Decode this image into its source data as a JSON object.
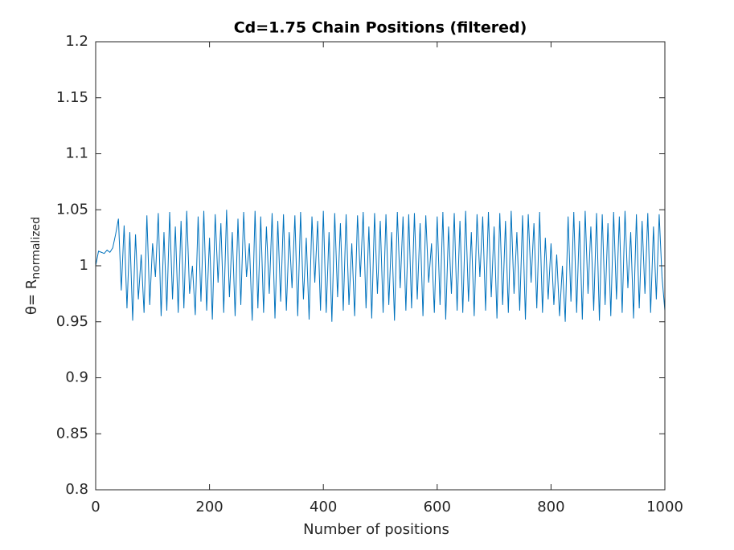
{
  "chart_data": {
    "type": "line",
    "title": "Cd=1.75   Chain  Positions (filtered)",
    "xlabel": "Number  of positions",
    "ylabel": "θ= R",
    "ylabel_subscript": "normalized",
    "xlim": [
      0,
      1000
    ],
    "xticks": [
      0,
      200,
      400,
      600,
      800,
      1000
    ],
    "ylim": [
      0.8,
      1.2
    ],
    "yticks": [
      0.8,
      0.85,
      0.9,
      0.95,
      1,
      1.05,
      1.1,
      1.15,
      1.2
    ],
    "grid": false,
    "x": [
      0,
      5,
      10,
      15,
      20,
      25,
      30,
      35,
      40,
      45,
      50,
      55,
      60,
      65,
      70,
      75,
      80,
      85,
      90,
      95,
      100,
      105,
      110,
      115,
      120,
      125,
      130,
      135,
      140,
      145,
      150,
      155,
      160,
      165,
      170,
      175,
      180,
      185,
      190,
      195,
      200,
      205,
      210,
      215,
      220,
      225,
      230,
      235,
      240,
      245,
      250,
      255,
      260,
      265,
      270,
      275,
      280,
      285,
      290,
      295,
      300,
      305,
      310,
      315,
      320,
      325,
      330,
      335,
      340,
      345,
      350,
      355,
      360,
      365,
      370,
      375,
      380,
      385,
      390,
      395,
      400,
      405,
      410,
      415,
      420,
      425,
      430,
      435,
      440,
      445,
      450,
      455,
      460,
      465,
      470,
      475,
      480,
      485,
      490,
      495,
      500,
      505,
      510,
      515,
      520,
      525,
      530,
      535,
      540,
      545,
      550,
      555,
      560,
      565,
      570,
      575,
      580,
      585,
      590,
      595,
      600,
      605,
      610,
      615,
      620,
      625,
      630,
      635,
      640,
      645,
      650,
      655,
      660,
      665,
      670,
      675,
      680,
      685,
      690,
      695,
      700,
      705,
      710,
      715,
      720,
      725,
      730,
      735,
      740,
      745,
      750,
      755,
      760,
      765,
      770,
      775,
      780,
      785,
      790,
      795,
      800,
      805,
      810,
      815,
      820,
      825,
      830,
      835,
      840,
      845,
      850,
      855,
      860,
      865,
      870,
      875,
      880,
      885,
      890,
      895,
      900,
      905,
      910,
      915,
      920,
      925,
      930,
      935,
      940,
      945,
      950,
      955,
      960,
      965,
      970,
      975,
      980,
      985,
      990,
      995,
      1000
    ],
    "series": [
      {
        "color": "#0072bd",
        "values": [
          1.0,
          1.013,
          1.012,
          1.011,
          1.014,
          1.012,
          1.016,
          1.028,
          1.042,
          0.978,
          1.036,
          0.962,
          1.03,
          0.951,
          1.028,
          0.97,
          1.01,
          0.958,
          1.045,
          0.965,
          1.02,
          0.99,
          1.047,
          0.955,
          1.03,
          0.96,
          1.048,
          0.97,
          1.035,
          0.958,
          1.04,
          0.962,
          1.049,
          0.975,
          1.0,
          0.956,
          1.044,
          0.968,
          1.049,
          0.96,
          1.025,
          0.952,
          1.046,
          0.985,
          1.038,
          0.958,
          1.05,
          0.972,
          1.03,
          0.955,
          1.042,
          0.965,
          1.048,
          0.99,
          1.02,
          0.951,
          1.049,
          0.962,
          1.044,
          0.958,
          1.035,
          0.975,
          1.047,
          0.953,
          1.04,
          0.968,
          1.046,
          0.96,
          1.03,
          0.98,
          1.045,
          0.955,
          1.048,
          0.97,
          1.025,
          0.952,
          1.044,
          0.985,
          1.04,
          0.96,
          1.049,
          0.958,
          1.03,
          0.95,
          1.047,
          0.972,
          1.038,
          0.96,
          1.046,
          0.965,
          1.02,
          0.955,
          1.045,
          0.99,
          1.048,
          0.962,
          1.035,
          0.953,
          1.047,
          0.975,
          1.04,
          0.958,
          1.046,
          0.965,
          1.03,
          0.951,
          1.048,
          0.98,
          1.044,
          0.96,
          1.046,
          0.962,
          1.047,
          0.97,
          1.038,
          0.955,
          1.045,
          0.985,
          1.02,
          0.958,
          1.044,
          0.965,
          1.048,
          0.952,
          1.035,
          0.975,
          1.047,
          0.96,
          1.04,
          0.958,
          1.049,
          0.968,
          1.03,
          0.955,
          1.046,
          0.99,
          1.044,
          0.96,
          1.048,
          0.972,
          1.035,
          0.953,
          1.047,
          0.965,
          1.04,
          0.958,
          1.049,
          0.975,
          1.03,
          0.96,
          1.045,
          0.952,
          1.046,
          0.985,
          1.038,
          0.962,
          1.048,
          0.958,
          1.025,
          0.97,
          1.02,
          0.965,
          1.01,
          0.955,
          1.0,
          0.95,
          1.044,
          0.968,
          1.048,
          0.958,
          1.04,
          0.952,
          1.049,
          0.975,
          1.035,
          0.96,
          1.047,
          0.951,
          1.046,
          0.965,
          1.038,
          0.955,
          1.048,
          0.97,
          1.044,
          0.958,
          1.049,
          0.98,
          1.03,
          0.953,
          1.046,
          0.962,
          1.04,
          0.975,
          1.047,
          0.958,
          1.035,
          0.97,
          1.046,
          0.99,
          0.96
        ]
      }
    ]
  }
}
